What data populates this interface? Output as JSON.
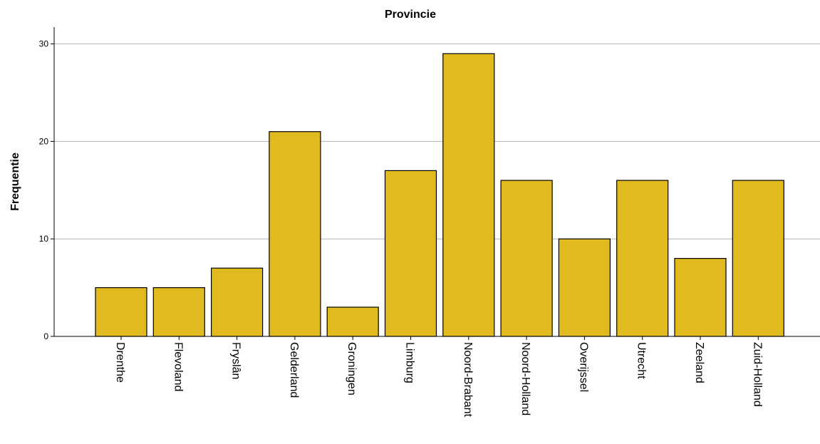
{
  "chart_data": {
    "type": "bar",
    "title": "Provincie",
    "xlabel": "",
    "ylabel": "Frequentie",
    "categories": [
      "Drenthe",
      "Flevoland",
      "Fryslân",
      "Gelderland",
      "Groningen",
      "Limburg",
      "Noord-Brabant",
      "Noord-Holland",
      "Overijssel",
      "Utrecht",
      "Zeeland",
      "Zuid-Holland"
    ],
    "values": [
      5,
      5,
      7,
      21,
      3,
      17,
      29,
      16,
      10,
      16,
      8,
      16
    ],
    "ylim": [
      0,
      31
    ],
    "yticks": [
      0,
      10,
      20,
      30
    ],
    "grid": true,
    "legend": "none",
    "colors": {
      "bar_fill": "#e0ba1f",
      "bar_stroke": "#000000",
      "grid": "#b3b3b3",
      "axis": "#000000"
    }
  }
}
